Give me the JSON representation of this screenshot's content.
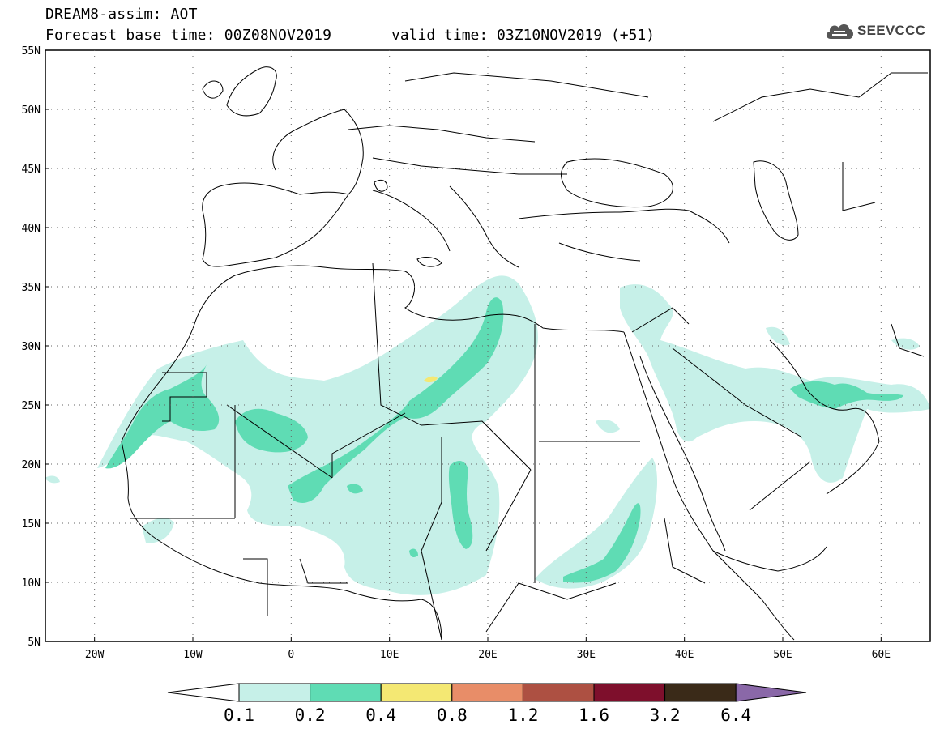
{
  "header": {
    "title": "DREAM8-assim: AOT",
    "base_time": "Forecast base time: 00Z08NOV2019",
    "valid_time": "valid time: 03Z10NOV2019 (+51)"
  },
  "logo": {
    "text": "SEEVCCC",
    "icon": "cloud-icon"
  },
  "map": {
    "lon_range": [
      -25,
      65
    ],
    "lat_range": [
      5,
      55
    ],
    "lat_labels": [
      "55N",
      "50N",
      "45N",
      "40N",
      "35N",
      "30N",
      "25N",
      "20N",
      "15N",
      "10N",
      "5N"
    ],
    "lon_labels": [
      "20W",
      "10W",
      "0",
      "10E",
      "20E",
      "30E",
      "40E",
      "50E",
      "60E"
    ]
  },
  "colorbar": {
    "levels": [
      "0.1",
      "0.2",
      "0.4",
      "0.8",
      "1.2",
      "1.6",
      "3.2",
      "6.4"
    ],
    "colors": [
      "#ffffff",
      "#c6f0e8",
      "#5fdcb4",
      "#f4e873",
      "#e88d68",
      "#ad5042",
      "#7e0f2c",
      "#3a2a18",
      "#8a68a8"
    ]
  }
}
